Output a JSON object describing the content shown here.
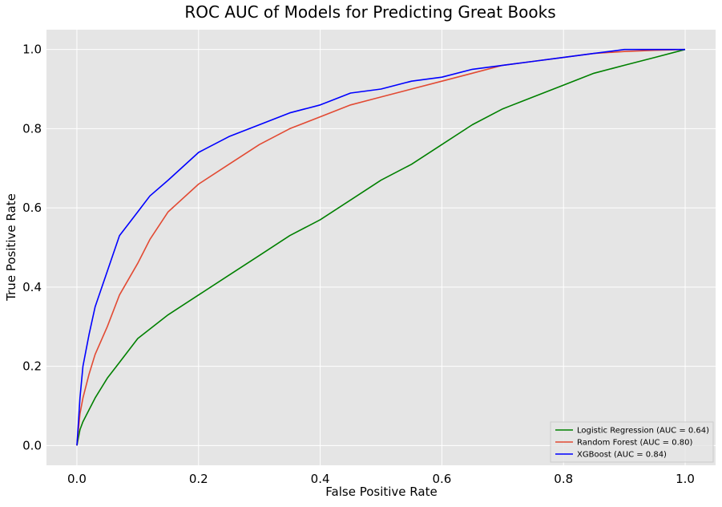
{
  "chart_data": {
    "type": "line",
    "title": "ROC AUC of Models for Predicting Great Books",
    "xlabel": "False Positive Rate",
    "ylabel": "True Positive Rate",
    "xlim": [
      -0.05,
      1.05
    ],
    "ylim": [
      -0.05,
      1.05
    ],
    "xticks": [
      0.0,
      0.2,
      0.4,
      0.6,
      0.8,
      1.0
    ],
    "xtick_labels": [
      "0.0",
      "0.2",
      "0.4",
      "0.6",
      "0.8",
      "1.0"
    ],
    "yticks": [
      0.0,
      0.2,
      0.4,
      0.6,
      0.8,
      1.0
    ],
    "ytick_labels": [
      "0.0",
      "0.2",
      "0.4",
      "0.6",
      "0.8",
      "1.0"
    ],
    "grid": true,
    "legend_position": "lower-right",
    "background_color": "#e5e5e5",
    "series": [
      {
        "name": "Logistic Regression (AUC = 0.64)",
        "color": "#008000",
        "x": [
          0,
          0.005,
          0.01,
          0.02,
          0.03,
          0.05,
          0.07,
          0.1,
          0.15,
          0.2,
          0.25,
          0.3,
          0.35,
          0.4,
          0.45,
          0.5,
          0.55,
          0.6,
          0.65,
          0.7,
          0.75,
          0.8,
          0.85,
          0.9,
          0.95,
          1.0
        ],
        "y": [
          0,
          0.04,
          0.06,
          0.09,
          0.12,
          0.17,
          0.21,
          0.27,
          0.33,
          0.38,
          0.43,
          0.48,
          0.53,
          0.57,
          0.62,
          0.67,
          0.71,
          0.76,
          0.81,
          0.85,
          0.88,
          0.91,
          0.94,
          0.96,
          0.98,
          1.0
        ]
      },
      {
        "name": "Random Forest (AUC = 0.80)",
        "color": "#e24a33",
        "x": [
          0,
          0.005,
          0.01,
          0.02,
          0.03,
          0.05,
          0.07,
          0.1,
          0.12,
          0.15,
          0.2,
          0.25,
          0.3,
          0.35,
          0.4,
          0.45,
          0.5,
          0.55,
          0.6,
          0.65,
          0.7,
          0.75,
          0.8,
          0.85,
          0.9,
          0.95,
          1.0
        ],
        "y": [
          0,
          0.08,
          0.12,
          0.18,
          0.23,
          0.3,
          0.38,
          0.46,
          0.52,
          0.59,
          0.66,
          0.71,
          0.76,
          0.8,
          0.83,
          0.86,
          0.88,
          0.9,
          0.92,
          0.94,
          0.96,
          0.97,
          0.98,
          0.99,
          0.995,
          0.998,
          1.0
        ]
      },
      {
        "name": "XGBoost (AUC = 0.84)",
        "color": "#0000ff",
        "x": [
          0,
          0.005,
          0.01,
          0.015,
          0.02,
          0.03,
          0.05,
          0.07,
          0.1,
          0.12,
          0.15,
          0.2,
          0.25,
          0.3,
          0.35,
          0.4,
          0.45,
          0.5,
          0.55,
          0.6,
          0.65,
          0.7,
          0.75,
          0.8,
          0.85,
          0.9,
          0.95,
          1.0
        ],
        "y": [
          0,
          0.12,
          0.2,
          0.24,
          0.28,
          0.35,
          0.44,
          0.53,
          0.59,
          0.63,
          0.67,
          0.74,
          0.78,
          0.81,
          0.84,
          0.86,
          0.89,
          0.9,
          0.92,
          0.93,
          0.95,
          0.96,
          0.97,
          0.98,
          0.99,
          1.0,
          1.0,
          1.0
        ]
      }
    ]
  }
}
